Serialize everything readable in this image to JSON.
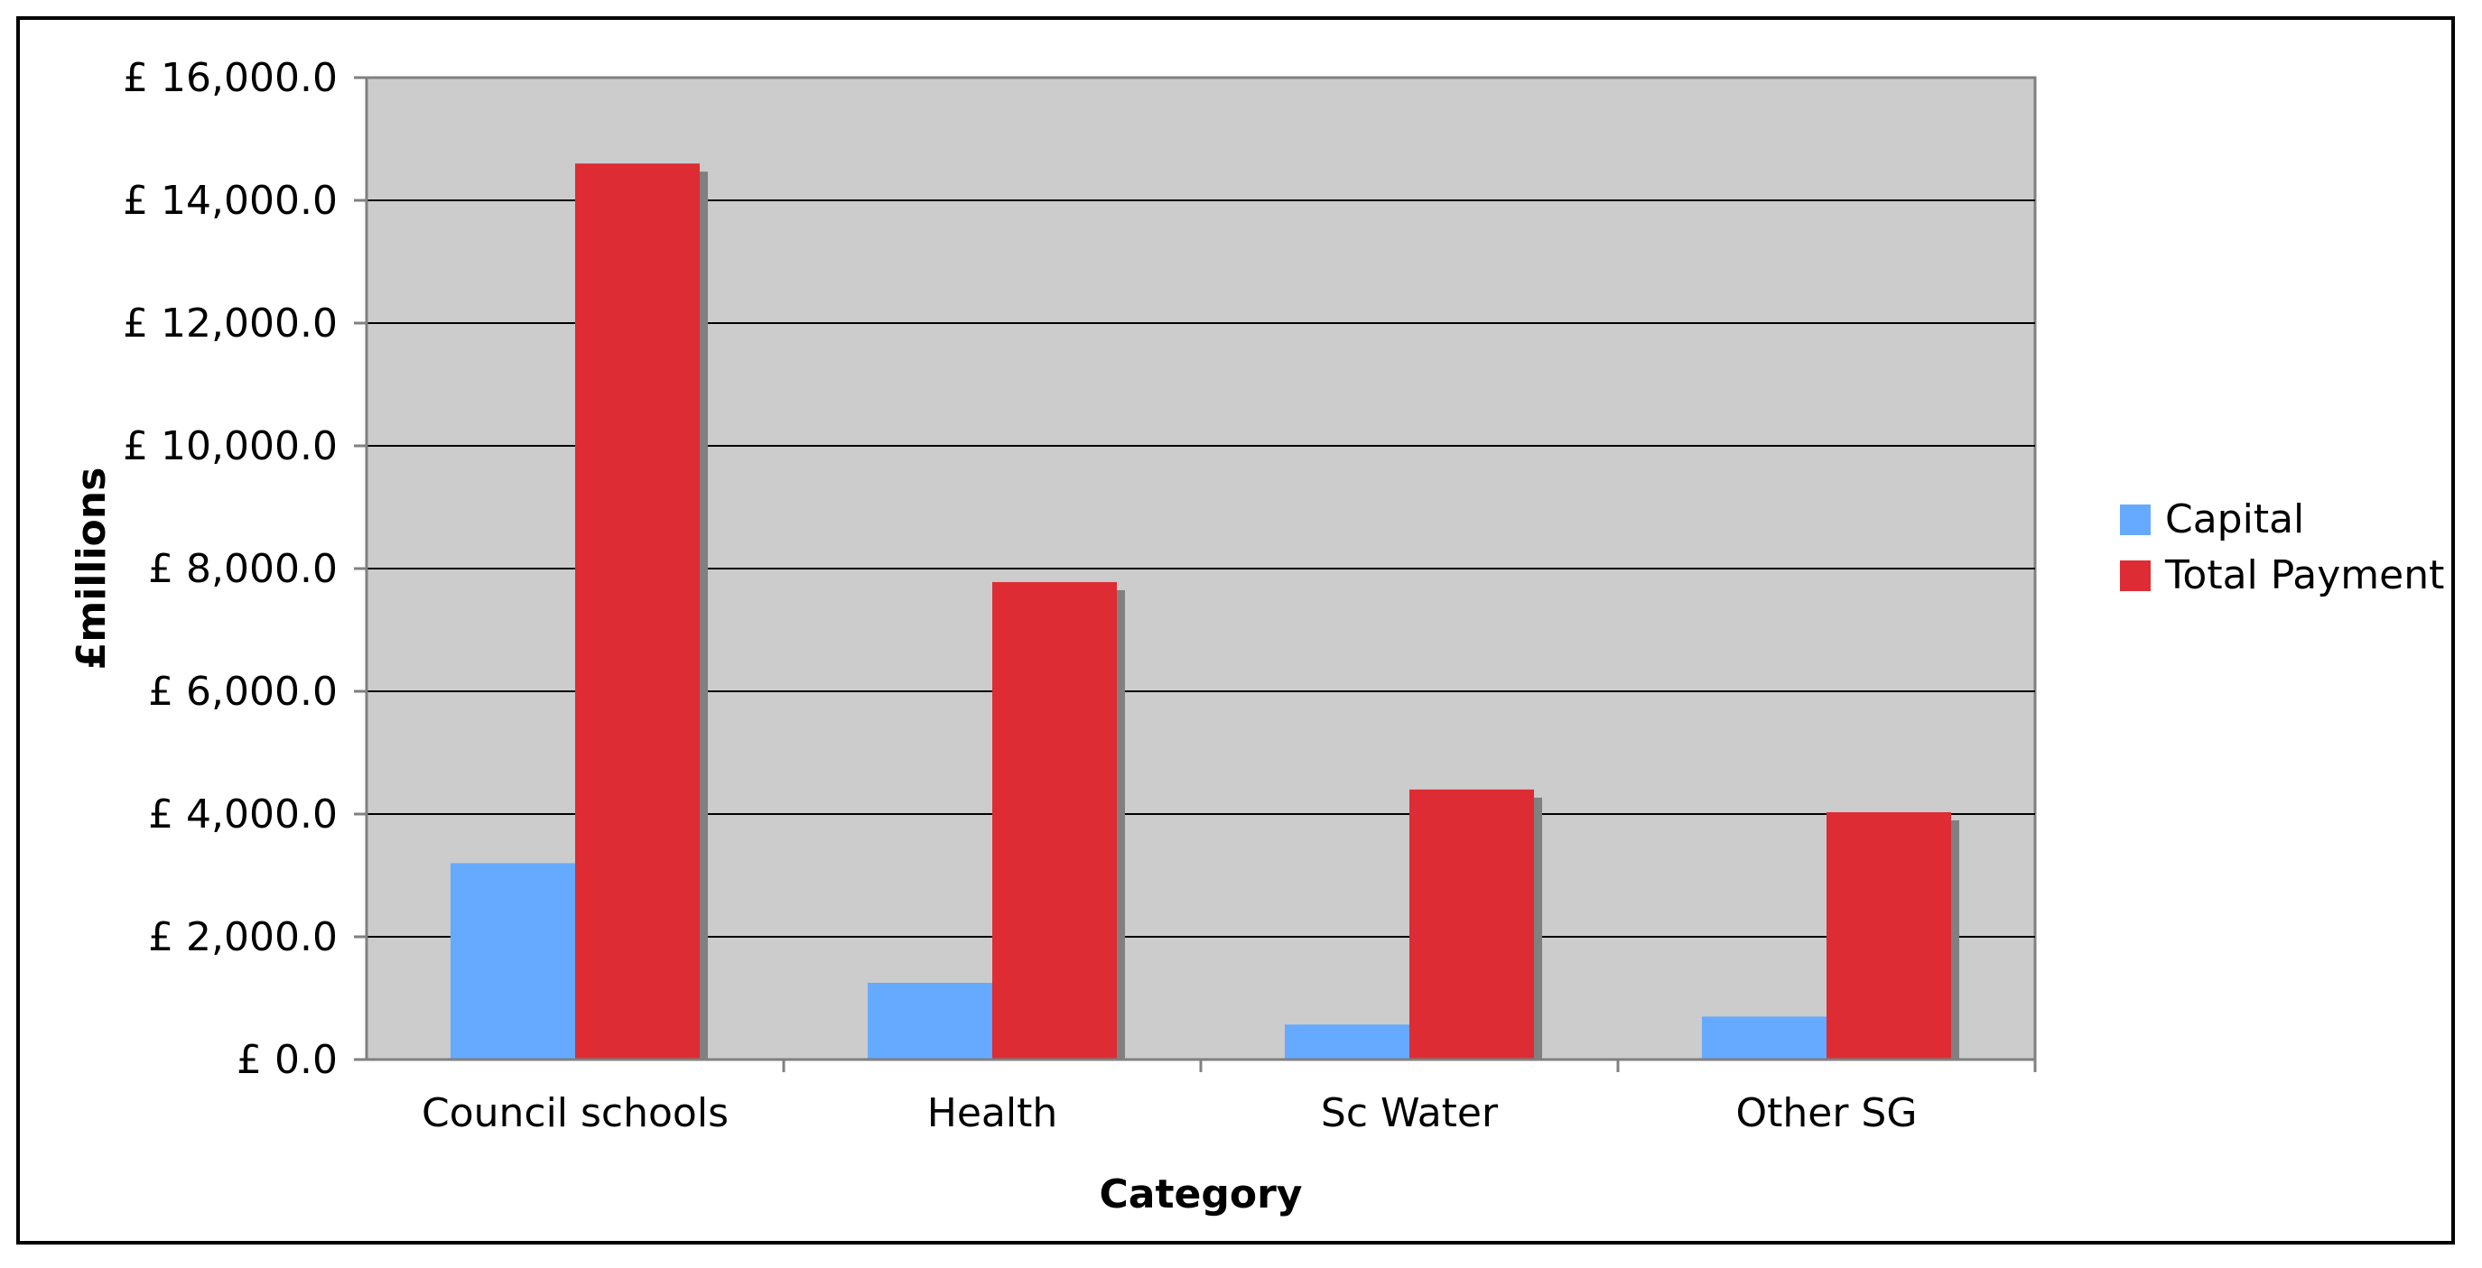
{
  "chart_data": {
    "type": "bar",
    "title": "",
    "xlabel": "Category",
    "ylabel": "£millions",
    "categories": [
      "Council schools",
      "Health",
      "Sc Water",
      "Other SG"
    ],
    "series": [
      {
        "name": "Capital",
        "values": [
          3200,
          1250,
          570,
          700
        ],
        "color": "#66aaff"
      },
      {
        "name": "Total Payment",
        "values": [
          14600,
          7780,
          4400,
          4030
        ],
        "color": "#dd2c34"
      }
    ],
    "ylim": [
      0,
      16000
    ],
    "yticks": [
      0,
      2000,
      4000,
      6000,
      8000,
      10000,
      12000,
      14000,
      16000
    ],
    "ytick_labels": [
      "£ 0.0",
      "£ 2,000.0",
      "£ 4,000.0",
      "£ 6,000.0",
      "£ 8,000.0",
      "£ 10,000.0",
      "£ 12,000.0",
      "£ 14,000.0",
      "£ 16,000.0"
    ],
    "grid": true,
    "legend": "right",
    "plot_background": "#cccccc",
    "shadow_color": "#808080"
  }
}
